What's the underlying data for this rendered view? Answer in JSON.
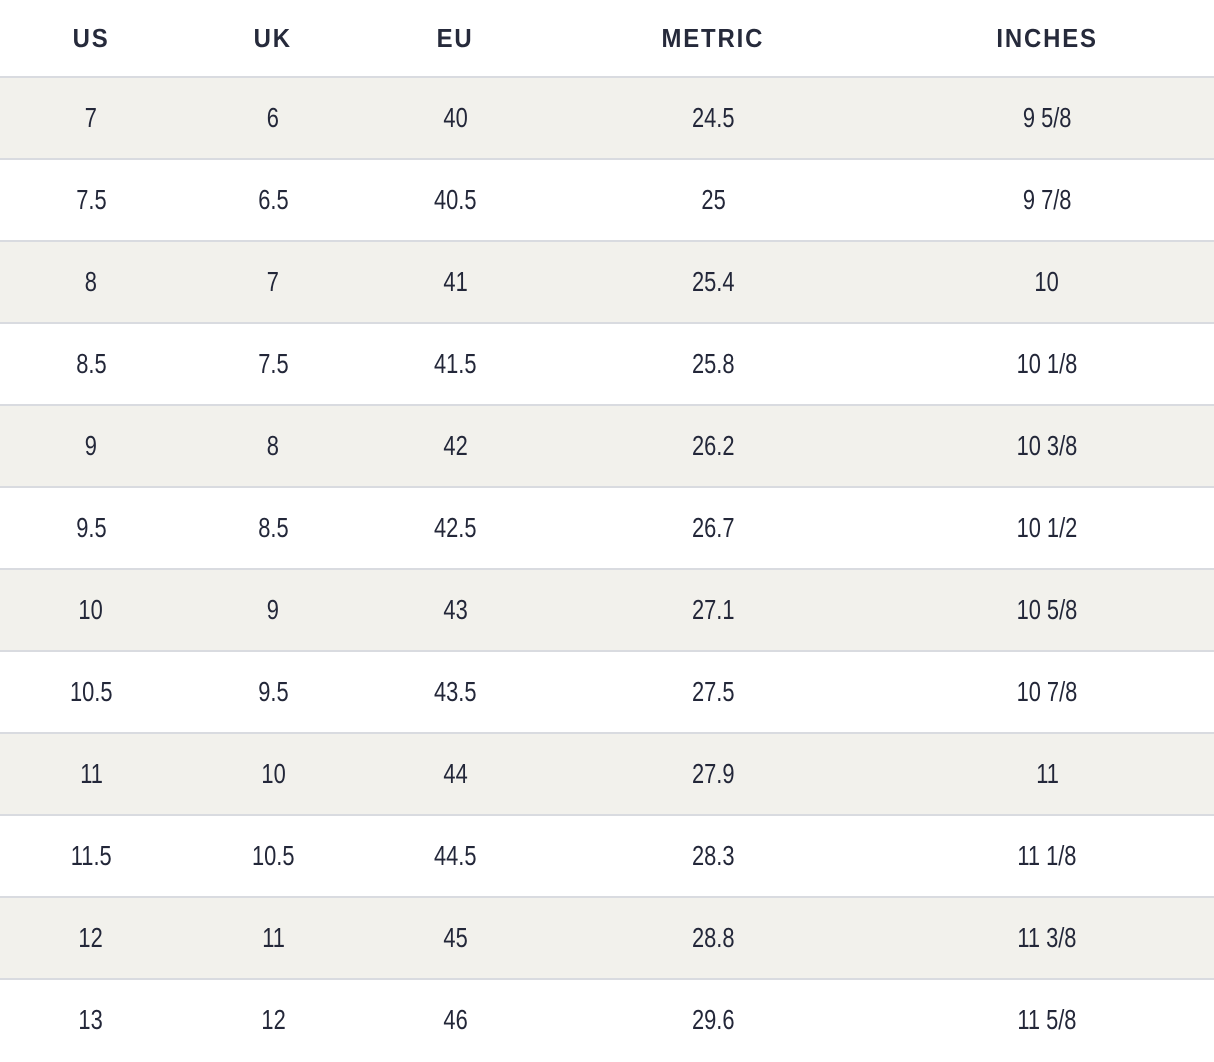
{
  "table": {
    "title": "shoe-size-conversion-chart",
    "columns": [
      "US",
      "UK",
      "EU",
      "METRIC",
      "INCHES"
    ],
    "rows": [
      [
        "7",
        "6",
        "40",
        "24.5",
        "9 5/8"
      ],
      [
        "7.5",
        "6.5",
        "40.5",
        "25",
        "9 7/8"
      ],
      [
        "8",
        "7",
        "41",
        "25.4",
        "10"
      ],
      [
        "8.5",
        "7.5",
        "41.5",
        "25.8",
        "10 1/8"
      ],
      [
        "9",
        "8",
        "42",
        "26.2",
        "10 3/8"
      ],
      [
        "9.5",
        "8.5",
        "42.5",
        "26.7",
        "10 1/2"
      ],
      [
        "10",
        "9",
        "43",
        "27.1",
        "10 5/8"
      ],
      [
        "10.5",
        "9.5",
        "43.5",
        "27.5",
        "10 7/8"
      ],
      [
        "11",
        "10",
        "44",
        "27.9",
        "11"
      ],
      [
        "11.5",
        "10.5",
        "44.5",
        "28.3",
        "11 1/8"
      ],
      [
        "12",
        "11",
        "45",
        "28.8",
        "11 3/8"
      ],
      [
        "13",
        "12",
        "46",
        "29.6",
        "11 5/8"
      ]
    ],
    "colors": {
      "stripe_background": "#f2f1ec",
      "row_border": "#d9dbe0",
      "text": "#232739",
      "header_text": "#262a3b"
    }
  }
}
